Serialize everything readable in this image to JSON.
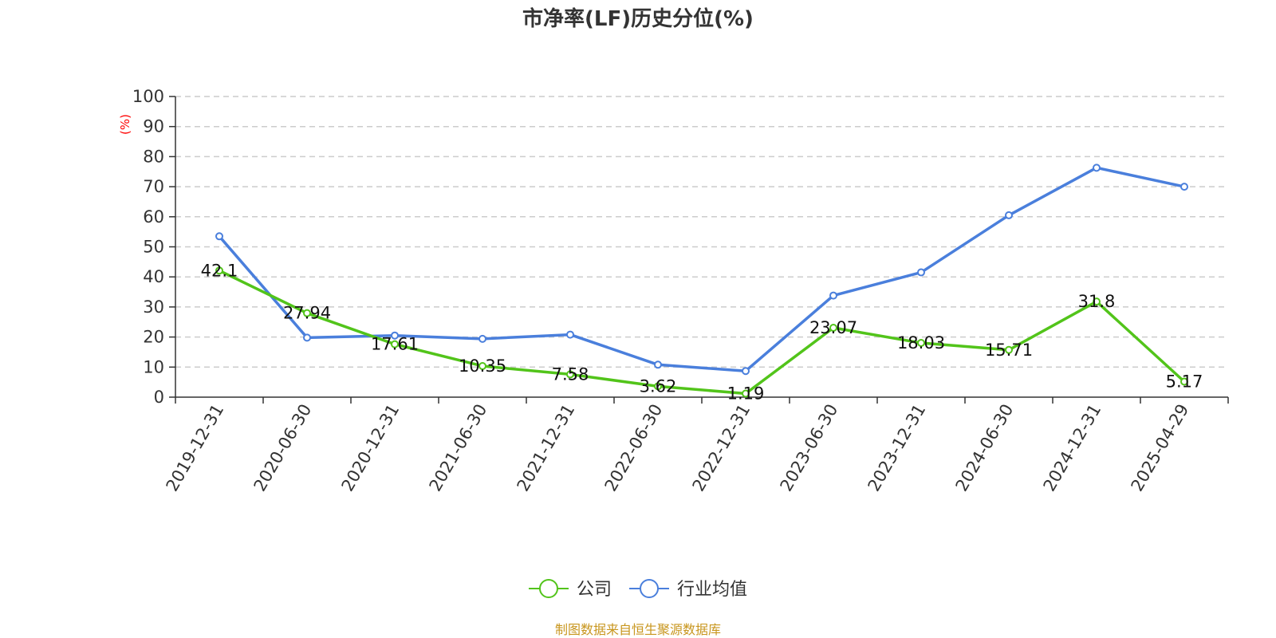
{
  "chart_data": {
    "type": "line",
    "title": "市净率(LF)历史分位(%)",
    "ylabel": "(%)",
    "ylim": [
      0,
      100
    ],
    "yticks": [
      0,
      10,
      20,
      30,
      40,
      50,
      60,
      70,
      80,
      90,
      100
    ],
    "grid": true,
    "legend_position": "bottom",
    "categories": [
      "2019-12-31",
      "2020-06-30",
      "2020-12-31",
      "2021-06-30",
      "2021-12-31",
      "2022-06-30",
      "2022-12-31",
      "2023-06-30",
      "2023-12-31",
      "2024-06-30",
      "2024-12-31",
      "2025-04-29"
    ],
    "series": [
      {
        "name": "公司",
        "color": "#52c41a",
        "values": [
          42.1,
          27.94,
          17.61,
          10.35,
          7.58,
          3.62,
          1.19,
          23.07,
          18.03,
          15.71,
          31.8,
          5.17
        ],
        "labels": [
          "42.1",
          "27.94",
          "17.61",
          "10.35",
          "7.58",
          "3.62",
          "1.19",
          "23.07",
          "18.03",
          "15.71",
          "31.8",
          "5.17"
        ]
      },
      {
        "name": "行业均值",
        "color": "#4a7fdc",
        "values": [
          53.5,
          19.8,
          20.5,
          19.4,
          20.8,
          10.8,
          8.7,
          33.8,
          41.5,
          60.5,
          76.3,
          70.0
        ]
      }
    ],
    "source": "制图数据来自恒生聚源数据库",
    "colors": {
      "axis": "#333333",
      "grid": "#cccccc",
      "unit": "#ff0000",
      "source": "#c8961e"
    }
  }
}
